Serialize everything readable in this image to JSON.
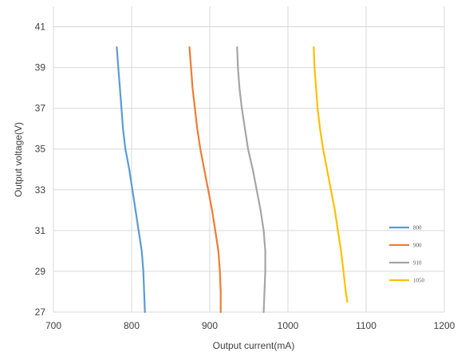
{
  "chart_data": {
    "type": "line",
    "title": "",
    "xlabel": "Output current(mA)",
    "ylabel": "Output voltage(V)",
    "xlim": [
      700,
      1200
    ],
    "ylim": [
      27,
      42
    ],
    "xticks": [
      700,
      800,
      900,
      1000,
      1100,
      1200
    ],
    "yticks": [
      27,
      29,
      31,
      33,
      35,
      37,
      39,
      41
    ],
    "grid": true,
    "legend_position": "bottom-right",
    "series": [
      {
        "name": "800",
        "color": "#5b9bd5",
        "points": [
          [
            781,
            40
          ],
          [
            783,
            39
          ],
          [
            785,
            38
          ],
          [
            787,
            37
          ],
          [
            789,
            36
          ],
          [
            792,
            35
          ],
          [
            797,
            34
          ],
          [
            801,
            33
          ],
          [
            805,
            32
          ],
          [
            809,
            31
          ],
          [
            813,
            30
          ],
          [
            815,
            29
          ],
          [
            816,
            28
          ],
          [
            817,
            27
          ]
        ]
      },
      {
        "name": "900",
        "color": "#ed7d31",
        "points": [
          [
            874,
            40
          ],
          [
            876,
            39
          ],
          [
            878,
            38
          ],
          [
            881,
            37
          ],
          [
            884,
            36
          ],
          [
            888,
            35
          ],
          [
            893,
            34
          ],
          [
            898,
            33
          ],
          [
            903,
            32
          ],
          [
            907,
            31
          ],
          [
            911,
            30
          ],
          [
            913,
            29
          ],
          [
            914,
            28
          ],
          [
            914,
            27
          ]
        ]
      },
      {
        "name": "910",
        "color": "#a5a5a5",
        "points": [
          [
            935,
            40
          ],
          [
            936,
            39
          ],
          [
            938,
            38
          ],
          [
            941,
            37
          ],
          [
            945,
            36
          ],
          [
            949,
            35
          ],
          [
            955,
            34
          ],
          [
            960,
            33
          ],
          [
            965,
            32
          ],
          [
            969,
            31
          ],
          [
            971,
            30
          ],
          [
            971,
            29
          ],
          [
            970,
            28
          ],
          [
            969,
            27
          ]
        ]
      },
      {
        "name": "1050",
        "color": "#ffc000",
        "points": [
          [
            1033,
            40
          ],
          [
            1034,
            39
          ],
          [
            1036,
            38
          ],
          [
            1038,
            37
          ],
          [
            1041,
            36
          ],
          [
            1045,
            35
          ],
          [
            1050,
            34
          ],
          [
            1055,
            33
          ],
          [
            1060,
            32
          ],
          [
            1064,
            31
          ],
          [
            1068,
            30
          ],
          [
            1071,
            29
          ],
          [
            1074,
            28
          ],
          [
            1076,
            27.5
          ]
        ]
      }
    ]
  }
}
